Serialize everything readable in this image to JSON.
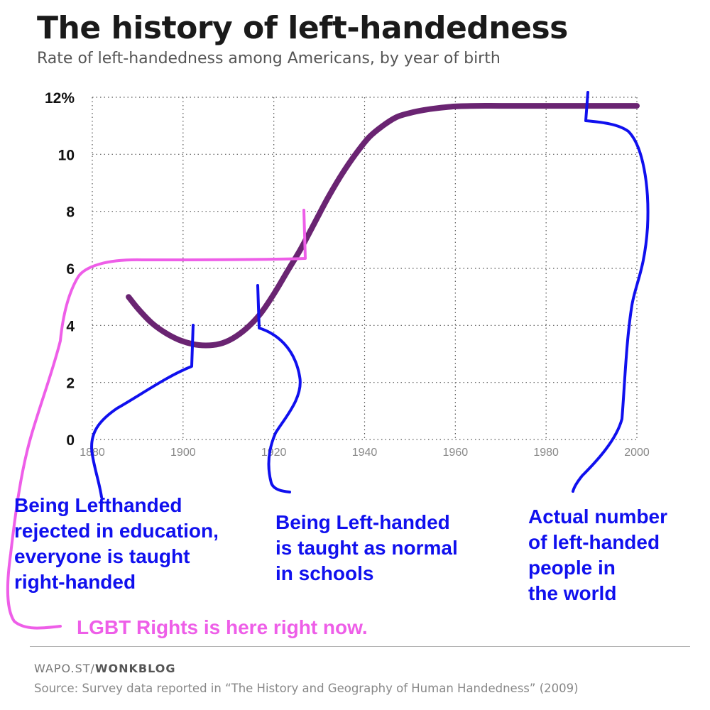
{
  "title": "The history of left-handedness",
  "subtitle": "Rate of left-handedness among Americans, by year of birth",
  "colors": {
    "line": "#6a2472",
    "grid": "#555555",
    "annotation_blue": "#1010ee",
    "annotation_pink": "#ee5ee8"
  },
  "chart_data": {
    "type": "line",
    "title": "The history of left-handedness",
    "subtitle": "Rate of left-handedness among Americans, by year of birth",
    "xlabel": "",
    "ylabel": "",
    "xlim": [
      1880,
      2000
    ],
    "ylim": [
      0,
      12
    ],
    "x_ticks": [
      1880,
      1900,
      1920,
      1940,
      1960,
      1980,
      2000
    ],
    "x_tick_labels": [
      "1880",
      "1900",
      "1920",
      "1940",
      "1960",
      "1980",
      "2000"
    ],
    "y_ticks": [
      0,
      2,
      4,
      6,
      8,
      10,
      12
    ],
    "y_tick_labels": [
      "0",
      "2",
      "4",
      "6",
      "8",
      "10",
      "12%"
    ],
    "grid": true,
    "series": [
      {
        "x": [
          1888,
          1890,
          1893,
          1896,
          1899,
          1902,
          1905,
          1908,
          1911,
          1914,
          1917,
          1920,
          1923,
          1926,
          1929,
          1932,
          1935,
          1938,
          1941,
          1944,
          1947,
          1950,
          1953,
          1956,
          1960,
          1965,
          1970,
          1980,
          1990,
          2000
        ],
        "values": [
          5.0,
          4.6,
          4.1,
          3.75,
          3.5,
          3.35,
          3.3,
          3.35,
          3.55,
          3.9,
          4.4,
          5.1,
          5.9,
          6.7,
          7.6,
          8.5,
          9.3,
          10.0,
          10.6,
          11.0,
          11.3,
          11.45,
          11.55,
          11.62,
          11.68,
          11.7,
          11.7,
          11.7,
          11.7,
          11.7
        ]
      }
    ],
    "annotations": [
      "Being Lefthanded rejected in education, everyone is taught right-handed",
      "Being Left-handed is taught as normal in schools",
      "Actual number of left-handed people in the world",
      "LGBT Rights is here right now."
    ]
  },
  "annotations": {
    "rejected": [
      "Being Lefthanded",
      "rejected in education,",
      "everyone is taught",
      "right-handed"
    ],
    "normal": [
      "Being Left-handed",
      "is taught as normal",
      "in schools"
    ],
    "actual": [
      "Actual number",
      "of left-handed",
      "people in",
      "the world"
    ],
    "lgbt": "LGBT Rights is here right now."
  },
  "footer": {
    "credit_prefix": "WAPO.ST/",
    "credit_bold": "WONKBLOG",
    "source": "Source: Survey data reported in “The History and Geography of Human Handedness” (2009)"
  }
}
